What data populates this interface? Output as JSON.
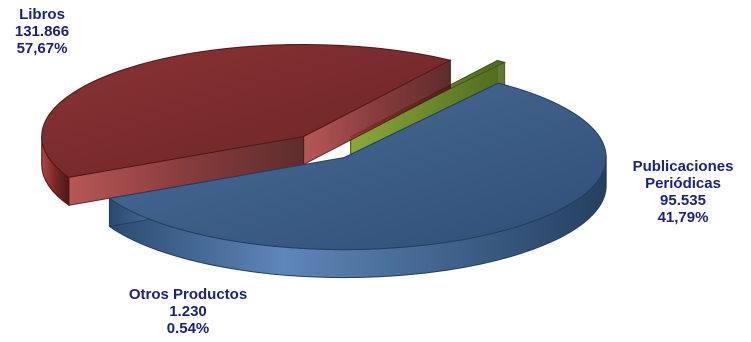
{
  "chart_data": {
    "type": "pie",
    "style": "3d-exploded",
    "slices": [
      {
        "name": "Libros",
        "value": 131866,
        "value_label": "131.866",
        "percent_label": "57,67%",
        "color": "#3e5f8a"
      },
      {
        "name": "Publicaciones Periódicas",
        "name_lines": [
          "Publicaciones",
          "Periódicas"
        ],
        "value": 95535,
        "value_label": "95.535",
        "percent_label": "41,79%",
        "color": "#7a2a2a"
      },
      {
        "name": "Otros Productos",
        "value": 1230,
        "value_label": "1.230",
        "percent_label": "0.54%",
        "color": "#6b8a2a"
      }
    ],
    "label_color": "#1a237e",
    "legend": "none"
  }
}
